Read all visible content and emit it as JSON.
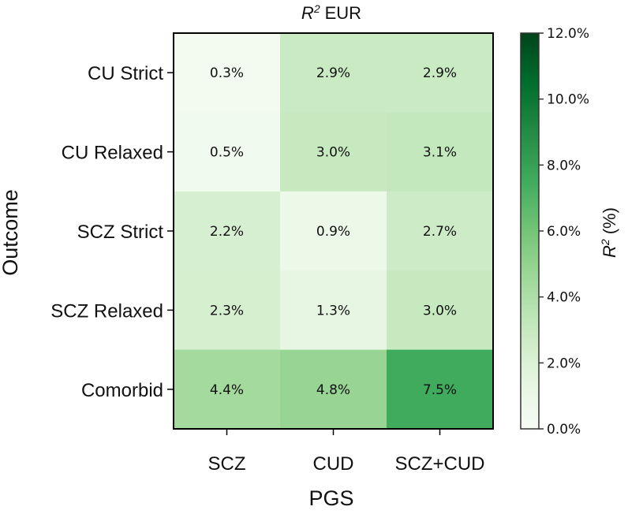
{
  "chart_data": {
    "type": "heatmap",
    "title": "EUR",
    "title_prefix": "R",
    "title_superscript": "2",
    "xlabel": "PGS",
    "ylabel": "Outcome",
    "x_categories": [
      "SCZ",
      "CUD",
      "SCZ+CUD"
    ],
    "y_categories": [
      "CU Strict",
      "CU Relaxed",
      "SCZ Strict",
      "SCZ Relaxed",
      "Comorbid"
    ],
    "values": [
      [
        0.3,
        2.9,
        2.9
      ],
      [
        0.5,
        3.0,
        3.1
      ],
      [
        2.2,
        0.9,
        2.7
      ],
      [
        2.3,
        1.3,
        3.0
      ],
      [
        4.4,
        4.8,
        7.5
      ]
    ],
    "cell_labels": [
      [
        "0.3%",
        "2.9%",
        "2.9%"
      ],
      [
        "0.5%",
        "3.0%",
        "3.1%"
      ],
      [
        "2.2%",
        "0.9%",
        "2.7%"
      ],
      [
        "2.3%",
        "1.3%",
        "3.0%"
      ],
      [
        "4.4%",
        "4.8%",
        "7.5%"
      ]
    ],
    "colorbar": {
      "label_prefix": "R",
      "label_superscript": "2",
      "label_suffix": "(%)",
      "range": [
        0,
        12
      ],
      "ticks": [
        0,
        2,
        4,
        6,
        8,
        10,
        12
      ],
      "tick_labels": [
        "0.0%",
        "2.0%",
        "4.0%",
        "6.0%",
        "8.0%",
        "10.0%",
        "12.0%"
      ],
      "colormap": "Greens",
      "color_low": "#f7fcf5",
      "color_high": "#00441b"
    }
  }
}
